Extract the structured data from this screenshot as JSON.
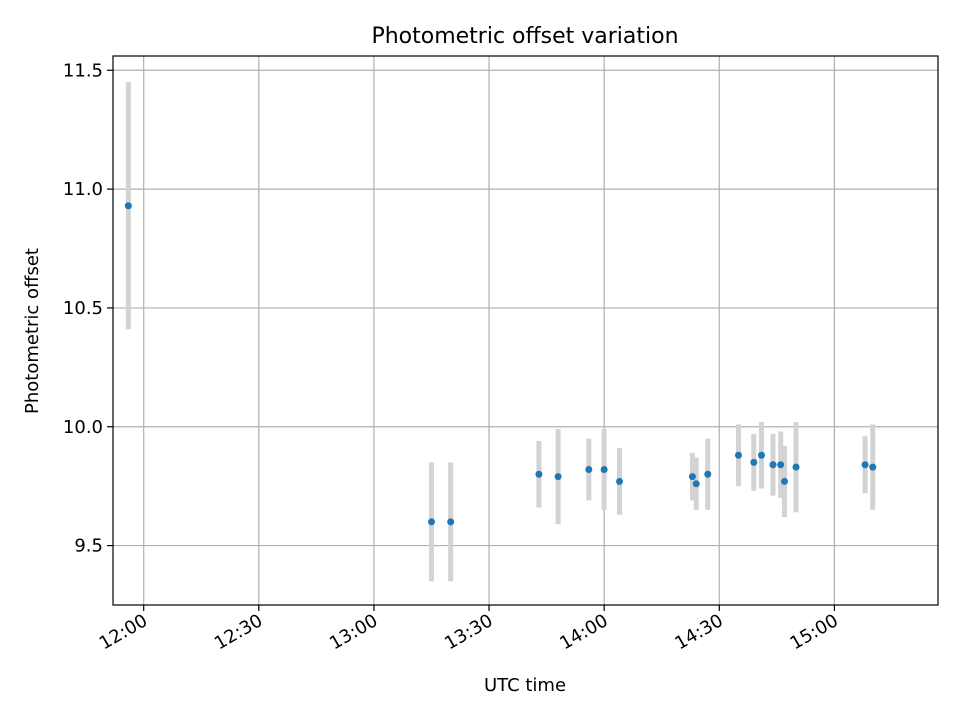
{
  "chart_data": {
    "type": "scatter",
    "title": "Photometric offset variation",
    "xlabel": "UTC time",
    "ylabel": "Photometric offset",
    "x_ticks": [
      "12:00",
      "12:30",
      "13:00",
      "13:30",
      "14:00",
      "14:30",
      "15:00"
    ],
    "y_ticks": [
      "9.5",
      "10.0",
      "10.5",
      "11.0",
      "11.5"
    ],
    "xlim": [
      "11:52",
      "15:27"
    ],
    "ylim": [
      9.25,
      11.56
    ],
    "grid": true,
    "marker_color": "#1f77b4",
    "errorbar_color": "#d3d3d3",
    "points": [
      {
        "t": "11:56",
        "y": 10.93,
        "err": 0.52
      },
      {
        "t": "13:15",
        "y": 9.6,
        "err": 0.25
      },
      {
        "t": "13:20",
        "y": 9.6,
        "err": 0.25
      },
      {
        "t": "13:43",
        "y": 9.8,
        "err": 0.14
      },
      {
        "t": "13:48",
        "y": 9.79,
        "err": 0.2
      },
      {
        "t": "13:56",
        "y": 9.82,
        "err": 0.13
      },
      {
        "t": "14:00",
        "y": 9.82,
        "err": 0.17
      },
      {
        "t": "14:04",
        "y": 9.77,
        "err": 0.14
      },
      {
        "t": "14:23",
        "y": 9.79,
        "err": 0.1
      },
      {
        "t": "14:24",
        "y": 9.76,
        "err": 0.11
      },
      {
        "t": "14:27",
        "y": 9.8,
        "err": 0.15
      },
      {
        "t": "14:35",
        "y": 9.88,
        "err": 0.13
      },
      {
        "t": "14:39",
        "y": 9.85,
        "err": 0.12
      },
      {
        "t": "14:41",
        "y": 9.88,
        "err": 0.14
      },
      {
        "t": "14:44",
        "y": 9.84,
        "err": 0.13
      },
      {
        "t": "14:46",
        "y": 9.84,
        "err": 0.14
      },
      {
        "t": "14:47",
        "y": 9.77,
        "err": 0.15
      },
      {
        "t": "14:50",
        "y": 9.83,
        "err": 0.19
      },
      {
        "t": "15:08",
        "y": 9.84,
        "err": 0.12
      },
      {
        "t": "15:10",
        "y": 9.83,
        "err": 0.18
      }
    ]
  }
}
